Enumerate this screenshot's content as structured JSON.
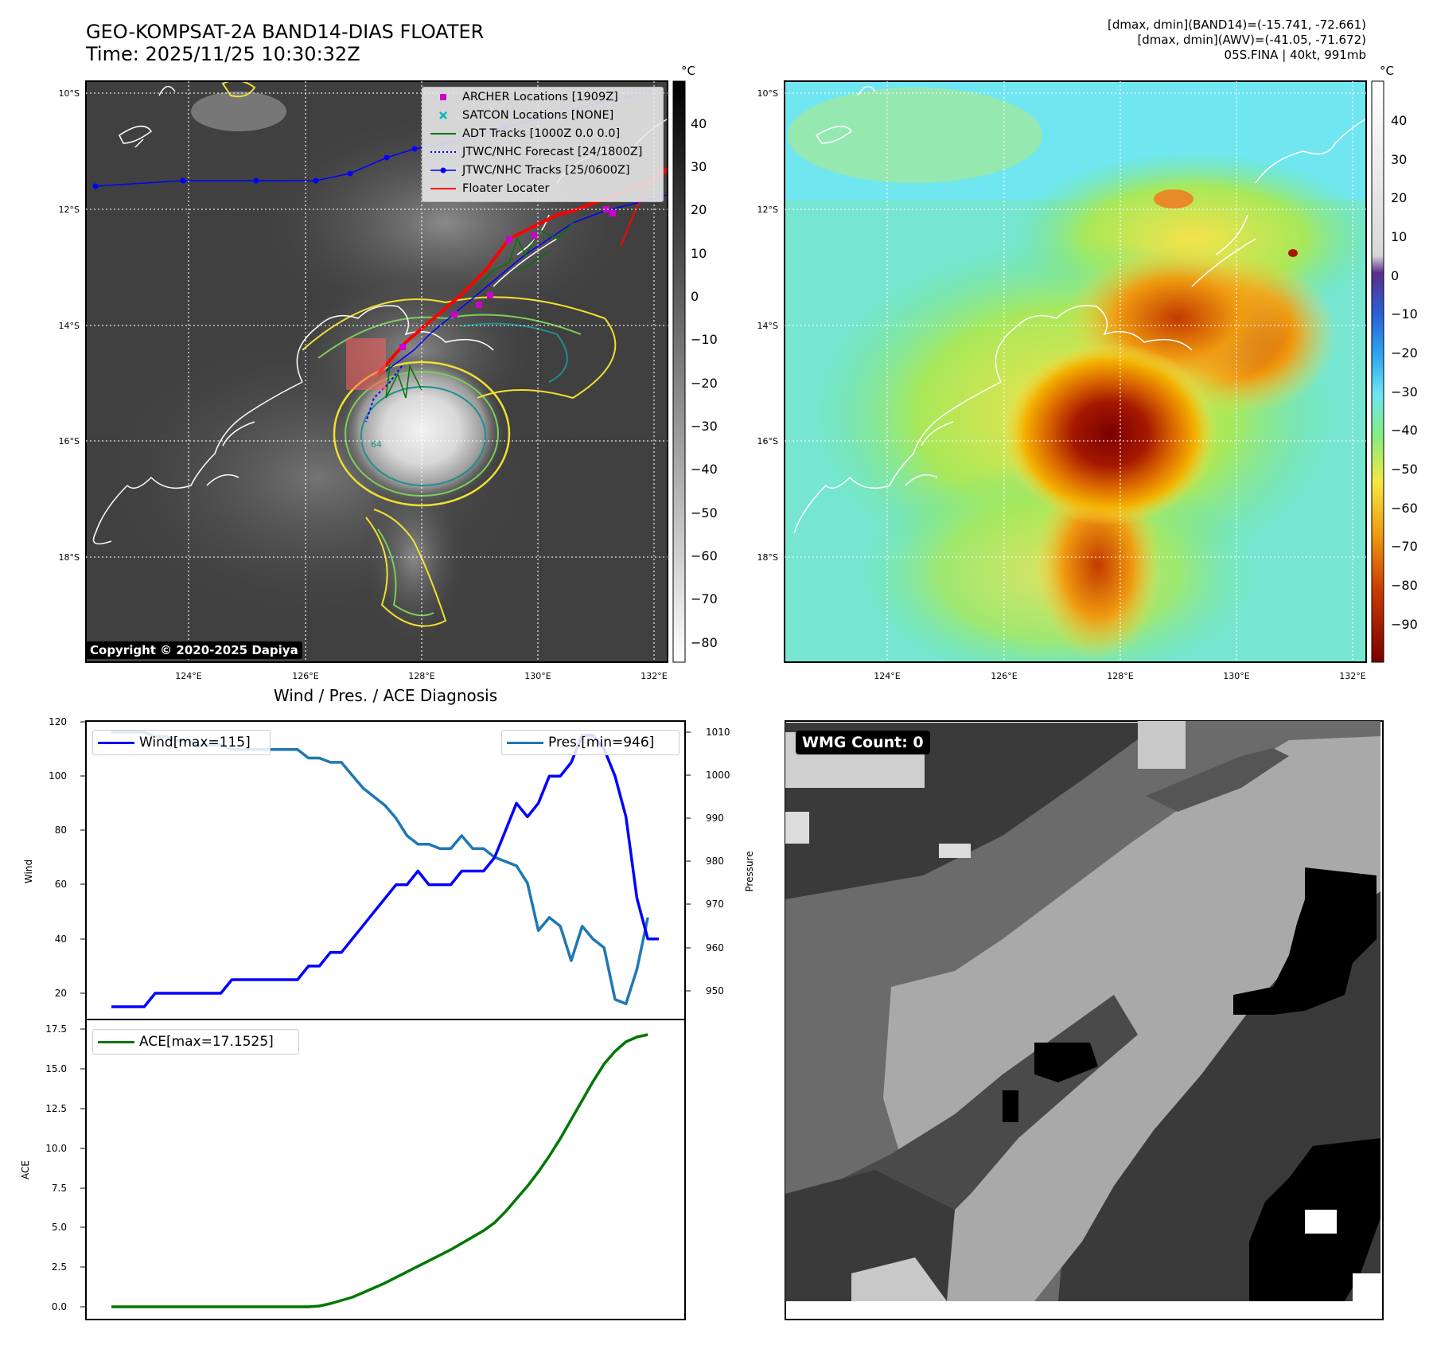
{
  "header": {
    "title_line1": "GEO-KOMPSAT-2A BAND14-DIAS FLOATER",
    "title_line2": "Time: 2025/11/25 10:30:32Z",
    "info_line1": "[dmax, dmin](BAND14)=(-15.741, -72.661)",
    "info_line2": "[dmax, dmin](AWV)=(-41.05, -71.672)",
    "info_line3": "05S.FINA | 40kt, 991mb"
  },
  "maps": {
    "lat_labels": [
      "10°S",
      "12°S",
      "14°S",
      "16°S",
      "18°S"
    ],
    "lon_labels": [
      "124°E",
      "126°E",
      "128°E",
      "130°E",
      "132°E"
    ],
    "unit": "°C",
    "gray_colorbar_ticks": [
      "40",
      "30",
      "20",
      "10",
      "0",
      "−10",
      "−20",
      "−30",
      "−40",
      "−50",
      "−60",
      "−70",
      "−80"
    ],
    "color_colorbar_ticks": [
      "40",
      "30",
      "20",
      "10",
      "0",
      "−10",
      "−20",
      "−30",
      "−40",
      "−50",
      "−60",
      "−70",
      "−80",
      "−90"
    ],
    "contour_label": "64",
    "copyright": "Copyright © 2020-2025 Dapiya",
    "legend": [
      {
        "label": "ARCHER Locations [1909Z]",
        "color": "#cc00cc"
      },
      {
        "label": "SATCON Locations [NONE]",
        "color": "#00bbbb"
      },
      {
        "label": "ADT Tracks [1000Z 0.0 0.0]",
        "color": "#007700"
      },
      {
        "label": "JTWC/NHC Forecast [24/1800Z]",
        "color": "#0000ff"
      },
      {
        "label": "JTWC/NHC Tracks [25/0600Z]",
        "color": "#0000ff"
      },
      {
        "label": "Floater Locater",
        "color": "#ff0000"
      }
    ]
  },
  "diagnosis": {
    "title": "Wind / Pres. / ACE Diagnosis",
    "wind_axis_label": "Wind",
    "pressure_axis_label": "Pressure",
    "ace_axis_label": "ACE",
    "wind_legend": "Wind[max=115]",
    "pres_legend": "Pres.[min=946]",
    "ace_legend": "ACE[max=17.1525]",
    "wind_ticks": [
      "120",
      "100",
      "80",
      "60",
      "40",
      "20"
    ],
    "pres_ticks": [
      "1010",
      "1000",
      "990",
      "980",
      "970",
      "960",
      "950"
    ],
    "ace_ticks": [
      "17.5",
      "15.0",
      "12.5",
      "10.0",
      "7.5",
      "5.0",
      "2.5",
      "0.0"
    ]
  },
  "wmg": {
    "label": "WMG Count: 0"
  },
  "colors": {
    "wind": "#0000ff",
    "pressure": "#1f77b4",
    "ace": "#007700",
    "track": "#0000ff",
    "floater": "#ff0000"
  },
  "chart_data": [
    {
      "type": "line",
      "title": "Wind / Pres. / ACE Diagnosis",
      "ylabel": "Wind",
      "ylim": [
        15,
        120
      ],
      "series": [
        {
          "name": "Wind[max=115]",
          "axis": "left",
          "x": [
            0,
            1,
            2,
            3,
            4,
            5,
            6,
            7,
            8,
            9,
            10,
            11,
            12,
            13,
            14,
            15,
            16,
            17,
            18,
            19,
            20,
            21,
            22,
            23,
            24,
            25,
            26,
            27,
            28,
            29,
            30,
            31,
            32,
            33,
            34,
            35,
            36,
            37,
            38,
            39,
            40,
            41,
            42,
            43,
            44,
            45,
            46,
            47,
            48,
            49,
            50
          ],
          "values": [
            15,
            15,
            15,
            15,
            20,
            20,
            20,
            20,
            20,
            20,
            20,
            25,
            25,
            25,
            25,
            25,
            25,
            25,
            30,
            30,
            35,
            35,
            40,
            45,
            50,
            55,
            60,
            60,
            65,
            60,
            60,
            60,
            65,
            65,
            65,
            70,
            80,
            90,
            85,
            90,
            100,
            100,
            105,
            115,
            115,
            110,
            100,
            85,
            55,
            40,
            40
          ]
        },
        {
          "name": "Pres.[min=946]",
          "axis": "right",
          "ylim": [
            945,
            1012
          ],
          "x": [
            0,
            1,
            2,
            3,
            4,
            5,
            6,
            7,
            8,
            9,
            10,
            11,
            12,
            13,
            14,
            15,
            16,
            17,
            18,
            19,
            20,
            21,
            22,
            23,
            24,
            25,
            26,
            27,
            28,
            29,
            30,
            31,
            32,
            33,
            34,
            35,
            36,
            37,
            38,
            39,
            40,
            41,
            42,
            43,
            44,
            45,
            46,
            47,
            48,
            49
          ],
          "values": [
            1010,
            1010,
            1010,
            1010,
            1009,
            1009,
            1008,
            1008,
            1007,
            1007,
            1007,
            1006,
            1006,
            1006,
            1006,
            1006,
            1006,
            1006,
            1004,
            1004,
            1003,
            1003,
            1000,
            997,
            995,
            993,
            990,
            986,
            984,
            984,
            983,
            983,
            986,
            983,
            983,
            981,
            980,
            979,
            975,
            964,
            967,
            965,
            957,
            965,
            962,
            960,
            948,
            947,
            955,
            967
          ]
        }
      ]
    },
    {
      "type": "line",
      "ylabel": "ACE",
      "ylim": [
        -0.9,
        17.5
      ],
      "series": [
        {
          "name": "ACE[max=17.1525]",
          "x": [
            0,
            2,
            4,
            6,
            8,
            10,
            12,
            14,
            16,
            18,
            19,
            20,
            21,
            22,
            23,
            24,
            25,
            26,
            27,
            28,
            29,
            30,
            31,
            32,
            33,
            34,
            35,
            36,
            37,
            38,
            39,
            40,
            41,
            42,
            43,
            44,
            45,
            46,
            47,
            48,
            49
          ],
          "values": [
            0,
            0,
            0,
            0,
            0,
            0,
            0,
            0,
            0,
            0,
            0.05,
            0.2,
            0.4,
            0.6,
            0.9,
            1.2,
            1.5,
            1.85,
            2.2,
            2.55,
            2.9,
            3.25,
            3.6,
            4.0,
            4.4,
            4.8,
            5.3,
            6.0,
            6.8,
            7.6,
            8.5,
            9.5,
            10.6,
            11.8,
            13.0,
            14.2,
            15.3,
            16.1,
            16.7,
            17.0,
            17.15
          ]
        }
      ]
    }
  ]
}
